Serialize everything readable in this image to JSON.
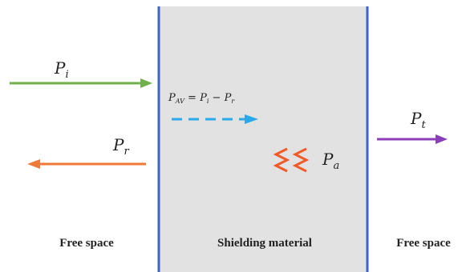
{
  "labels": {
    "incident": {
      "symbol": "P",
      "sub": "i"
    },
    "reflected": {
      "symbol": "P",
      "sub": "r"
    },
    "transmitted": {
      "symbol": "P",
      "sub": "t"
    },
    "absorbed": {
      "symbol": "P",
      "sub": "a"
    },
    "average": {
      "symbol": "P",
      "sub": "AV",
      "rhs1_sym": "P",
      "rhs1_sub": "i",
      "rhs2_sym": "P",
      "rhs2_sub": "r"
    }
  },
  "regions": {
    "left": "Free space",
    "middle": "Shielding material",
    "right": "Free space"
  },
  "colors": {
    "slab_fill": "#e2e2e2",
    "slab_border": "#3f62c4",
    "incident": "#6fb04a",
    "reflected": "#ee7a3a",
    "transmitted": "#8a3fb8",
    "average": "#2aa9ea",
    "absorbed": "#f05a28"
  }
}
